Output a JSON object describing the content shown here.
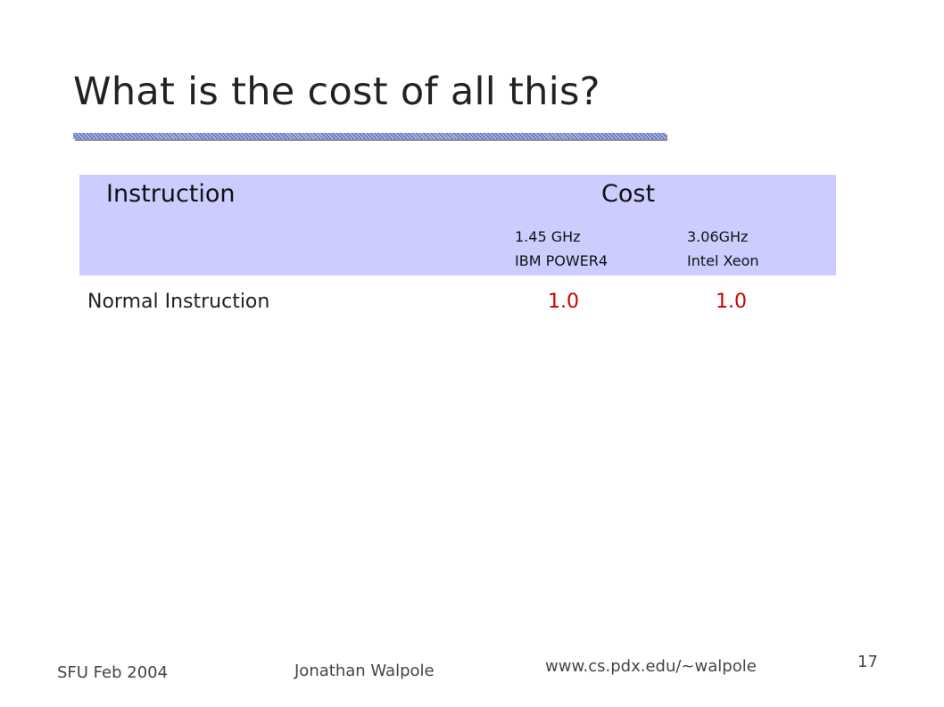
{
  "slide": {
    "title": "What is the cost of all this?"
  },
  "table": {
    "headers": {
      "instruction": "Instruction",
      "cost": "Cost",
      "machines": [
        {
          "line1": "1.45 GHz",
          "line2": "IBM POWER4"
        },
        {
          "line1": "3.06GHz",
          "line2": "Intel Xeon"
        }
      ]
    },
    "rows": [
      {
        "label": "Normal Instruction",
        "values": [
          "1.0",
          "1.0"
        ]
      }
    ]
  },
  "footer": {
    "left": "SFU Feb 2004",
    "center": "Jonathan Walpole",
    "url": "www.cs.pdx.edu/~walpole",
    "page": "17"
  },
  "colors": {
    "header_bg": "#ccccff",
    "value_red": "#cc0000"
  }
}
